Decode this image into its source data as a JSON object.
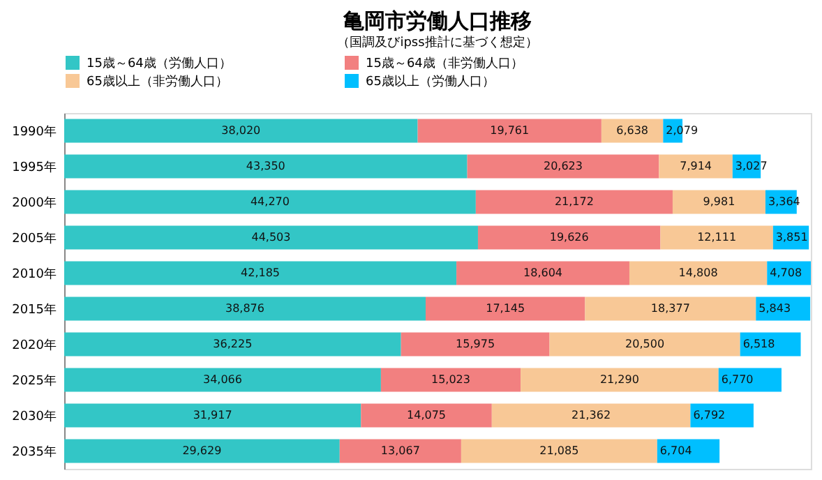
{
  "chart_data": {
    "type": "bar",
    "orientation": "horizontal",
    "stacked": true,
    "title": "亀岡市労働人口推移",
    "subtitle": "（国調及びipss推計に基づく想定）",
    "categories": [
      "1990年",
      "1995年",
      "2000年",
      "2005年",
      "2010年",
      "2015年",
      "2020年",
      "2025年",
      "2030年",
      "2035年"
    ],
    "series": [
      {
        "name": "15歳～64歳（労働人口）",
        "color": "#33c6c6",
        "values": [
          38020,
          43350,
          44270,
          44503,
          42185,
          38876,
          36225,
          34066,
          31917,
          29629
        ],
        "value_labels": [
          "38,020",
          "43,350",
          "44,270",
          "44,503",
          "42,185",
          "38,876",
          "36,225",
          "34,066",
          "31,917",
          "29,629"
        ]
      },
      {
        "name": "15歳～64歳（非労働人口）",
        "color": "#f28080",
        "values": [
          19761,
          20623,
          21172,
          19626,
          18604,
          17145,
          15975,
          15023,
          14075,
          13067
        ],
        "value_labels": [
          "19,761",
          "20,623",
          "21,172",
          "19,626",
          "18,604",
          "17,145",
          "15,975",
          "15,023",
          "14,075",
          "13,067"
        ]
      },
      {
        "name": "65歳以上（非労働人口）",
        "color": "#f8c896",
        "values": [
          6638,
          7914,
          9981,
          12111,
          14808,
          18377,
          20500,
          21290,
          21362,
          21085
        ],
        "value_labels": [
          "6,638",
          "7,914",
          "9,981",
          "12,111",
          "14,808",
          "18,377",
          "20,500",
          "21,290",
          "21,362",
          "21,085"
        ]
      },
      {
        "name": "65歳以上（労働人口）",
        "color": "#00bfff",
        "values": [
          2079,
          3027,
          3364,
          3851,
          4708,
          5843,
          6518,
          6770,
          6792,
          6704
        ],
        "value_labels": [
          "2,079",
          "3,027",
          "3,364",
          "3,851",
          "4,708",
          "5,843",
          "6,518",
          "6,770",
          "6,792",
          "6,704"
        ]
      }
    ],
    "legend": "top",
    "tick_labels": "y"
  }
}
